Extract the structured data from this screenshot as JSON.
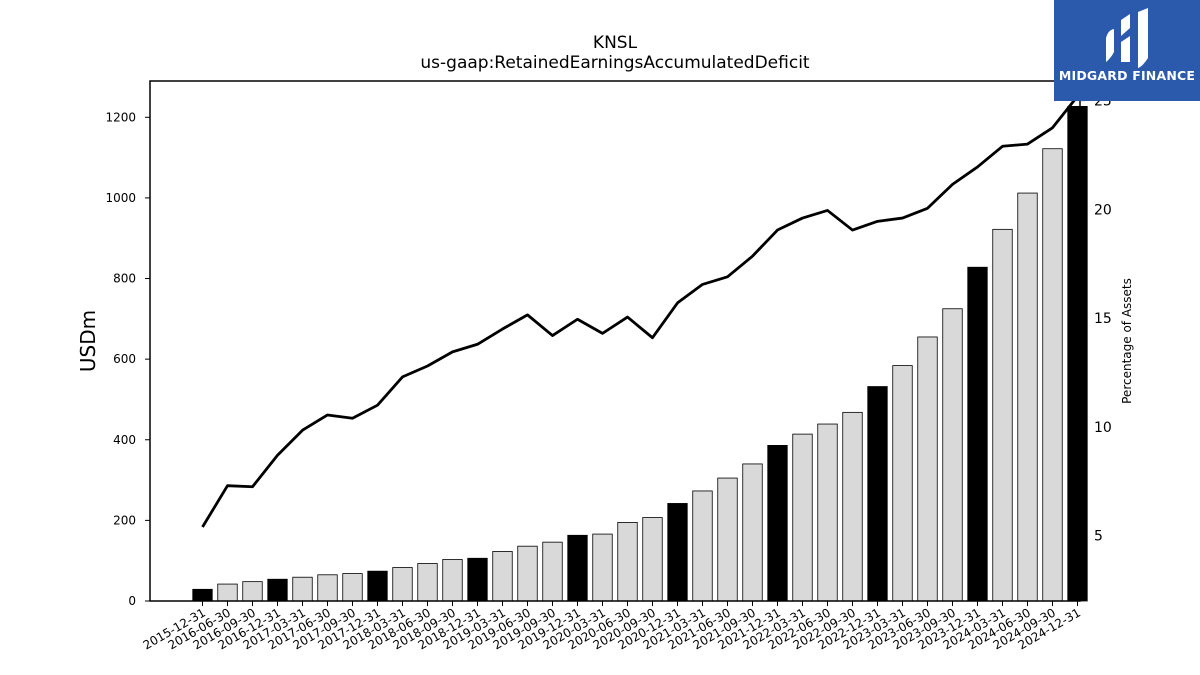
{
  "brand": {
    "name": "MIDGARD FINANCE",
    "colors": {
      "background": "#2b5aad",
      "mark": "#ffffff"
    }
  },
  "chart_data": {
    "type": "bar",
    "title": "KNSL",
    "subtitle": "us-gaap:RetainedEarningsAccumulatedDeficit",
    "ylabel": "USDm",
    "y2label": "Percentage of Assets",
    "ylim": [
      0,
      1290
    ],
    "y2lim": [
      2,
      25.9
    ],
    "yticks": [
      0,
      200,
      400,
      600,
      800,
      1000,
      1200
    ],
    "y2ticks": [
      5,
      10,
      15,
      20,
      25
    ],
    "grid": false,
    "colors": {
      "q4_bar": "#000000",
      "other_bar": "#d9d9d9",
      "line": "#000000"
    },
    "categories": [
      "2015-12-31",
      "2016-06-30",
      "2016-09-30",
      "2016-12-31",
      "2017-03-31",
      "2017-06-30",
      "2017-09-30",
      "2017-12-31",
      "2018-03-31",
      "2018-06-30",
      "2018-09-30",
      "2018-12-31",
      "2019-03-31",
      "2019-06-30",
      "2019-09-30",
      "2019-12-31",
      "2020-03-31",
      "2020-06-30",
      "2020-09-30",
      "2020-12-31",
      "2021-03-31",
      "2021-06-30",
      "2021-09-30",
      "2021-12-31",
      "2022-03-31",
      "2022-06-30",
      "2022-09-30",
      "2022-12-31",
      "2023-03-31",
      "2023-06-30",
      "2023-09-30",
      "2023-12-31",
      "2024-03-31",
      "2024-06-30",
      "2024-09-30",
      "2024-12-31"
    ],
    "series": [
      {
        "kind": "bar",
        "axis": "left",
        "values": [
          29,
          42,
          48,
          54,
          59,
          65,
          68,
          74,
          83,
          93,
          103,
          106,
          123,
          136,
          146,
          163,
          166,
          195,
          207,
          242,
          273,
          305,
          340,
          386,
          414,
          439,
          468,
          532,
          584,
          655,
          725,
          828,
          922,
          1012,
          1122,
          1227
        ]
      },
      {
        "kind": "line",
        "axis": "right",
        "values": [
          5.4,
          7.3,
          7.25,
          8.7,
          9.85,
          10.55,
          10.4,
          11.0,
          12.3,
          12.8,
          13.45,
          13.8,
          14.5,
          15.15,
          14.2,
          14.95,
          14.3,
          15.05,
          14.1,
          15.7,
          16.55,
          16.9,
          17.85,
          19.05,
          19.6,
          19.95,
          19.05,
          19.45,
          19.6,
          20.05,
          21.15,
          21.95,
          22.9,
          23.0,
          23.75,
          25.2
        ]
      }
    ]
  }
}
